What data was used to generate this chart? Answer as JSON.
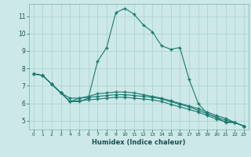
{
  "xlabel": "Humidex (Indice chaleur)",
  "background_color": "#cce8e8",
  "line_color": "#1a7a6e",
  "grid_color": "#aacfcf",
  "xlim": [
    -0.5,
    23.5
  ],
  "ylim": [
    4.5,
    11.7
  ],
  "xticks": [
    0,
    1,
    2,
    3,
    4,
    5,
    6,
    7,
    8,
    9,
    10,
    11,
    12,
    13,
    14,
    15,
    16,
    17,
    18,
    19,
    20,
    21,
    22,
    23
  ],
  "yticks": [
    5,
    6,
    7,
    8,
    9,
    10,
    11
  ],
  "series": [
    [
      7.7,
      7.6,
      7.1,
      6.6,
      6.1,
      6.1,
      6.3,
      8.4,
      9.2,
      11.2,
      11.45,
      11.1,
      10.5,
      10.1,
      9.3,
      9.1,
      9.2,
      7.4,
      6.0,
      5.4,
      5.2,
      4.9,
      4.9,
      4.7
    ],
    [
      7.7,
      7.6,
      7.1,
      6.6,
      6.1,
      6.3,
      6.4,
      6.55,
      6.6,
      6.65,
      6.65,
      6.6,
      6.5,
      6.4,
      6.3,
      6.15,
      6.0,
      5.85,
      5.7,
      5.5,
      5.3,
      5.15,
      4.9,
      4.7
    ],
    [
      7.7,
      7.6,
      7.1,
      6.6,
      6.3,
      6.3,
      6.35,
      6.4,
      6.45,
      6.5,
      6.5,
      6.45,
      6.4,
      6.35,
      6.25,
      6.1,
      5.95,
      5.8,
      5.6,
      5.4,
      5.2,
      5.05,
      4.9,
      4.7
    ],
    [
      7.7,
      7.6,
      7.1,
      6.6,
      6.1,
      6.15,
      6.2,
      6.25,
      6.3,
      6.35,
      6.35,
      6.3,
      6.25,
      6.2,
      6.1,
      5.95,
      5.8,
      5.65,
      5.5,
      5.3,
      5.1,
      4.95,
      4.9,
      4.7
    ]
  ]
}
